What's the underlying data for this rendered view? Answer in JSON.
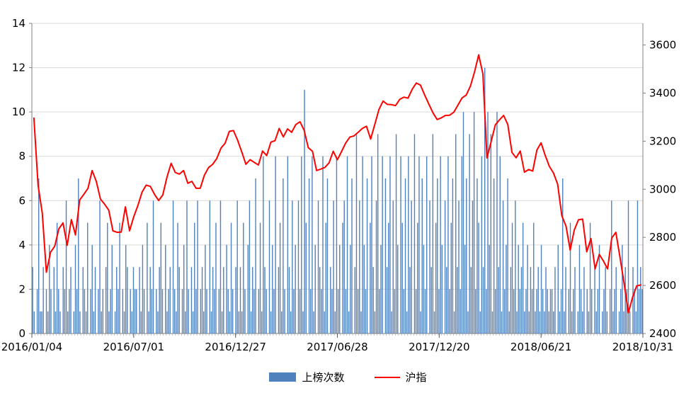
{
  "chart_data": {
    "type": "combo",
    "title": "",
    "x_tick_labels": [
      "2016/01/04",
      "2016/07/01",
      "2016/12/27",
      "2017/06/28",
      "2017/12/20",
      "2018/06/21",
      "2018/10/31"
    ],
    "left_axis": {
      "min": 0,
      "max": 14,
      "step": 2,
      "ticks": [
        0,
        2,
        4,
        6,
        8,
        10,
        12,
        14
      ]
    },
    "right_axis": {
      "min": 2400,
      "plot_max": 3690,
      "labels": [
        2400,
        2600,
        2800,
        3000,
        3200,
        3400,
        3600
      ]
    },
    "legend_position": "bottom",
    "grid": "horizontal",
    "series": [
      {
        "name": "上榜次数",
        "type": "bar",
        "axis": "left",
        "color": "#4f81bd",
        "values": [
          3,
          1,
          0,
          2,
          7,
          1,
          1,
          3,
          0,
          2,
          1,
          4,
          2,
          0,
          3,
          1,
          5,
          2,
          1,
          0,
          3,
          2,
          6,
          1,
          2,
          3,
          0,
          1,
          4,
          2,
          7,
          1,
          0,
          3,
          2,
          1,
          5,
          0,
          2,
          4,
          1,
          3,
          0,
          2,
          6,
          1,
          2,
          0,
          3,
          5,
          1,
          2,
          4,
          0,
          1,
          3,
          2,
          5,
          0,
          2,
          1,
          4,
          3,
          0,
          2,
          1,
          3,
          2,
          2,
          0,
          3,
          1,
          4,
          2,
          0,
          5,
          1,
          3,
          2,
          6,
          0,
          2,
          1,
          3,
          5,
          2,
          0,
          4,
          1,
          2,
          3,
          0,
          6,
          2,
          1,
          5,
          3,
          0,
          2,
          4,
          1,
          6,
          2,
          0,
          3,
          1,
          5,
          2,
          6,
          0,
          2,
          3,
          1,
          4,
          2,
          0,
          6,
          1,
          3,
          2,
          5,
          0,
          2,
          6,
          1,
          3,
          0,
          4,
          2,
          1,
          5,
          2,
          0,
          3,
          6,
          1,
          3,
          1,
          5,
          2,
          0,
          4,
          6,
          1,
          3,
          2,
          7,
          0,
          2,
          5,
          1,
          8,
          3,
          2,
          0,
          6,
          1,
          4,
          2,
          8,
          0,
          3,
          5,
          1,
          7,
          2,
          0,
          8,
          3,
          1,
          6,
          2,
          4,
          0,
          6,
          2,
          8,
          1,
          11,
          5,
          0,
          7,
          2,
          8,
          1,
          4,
          0,
          6,
          3,
          2,
          8,
          1,
          5,
          7,
          0,
          3,
          2,
          6,
          1,
          8,
          2,
          4,
          0,
          5,
          6,
          2,
          8,
          1,
          4,
          7,
          0,
          3,
          9,
          2,
          6,
          1,
          8,
          4,
          2,
          7,
          0,
          5,
          8,
          3,
          1,
          6,
          9,
          2,
          4,
          8,
          0,
          7,
          3,
          5,
          8,
          1,
          6,
          2,
          9,
          4,
          0,
          8,
          5,
          2,
          7,
          1,
          8,
          3,
          6,
          0,
          9,
          2,
          5,
          8,
          1,
          7,
          4,
          2,
          8,
          0,
          6,
          3,
          9,
          1,
          5,
          7,
          2,
          8,
          4,
          0,
          6,
          3,
          8,
          2,
          5,
          7,
          1,
          9,
          3,
          6,
          2,
          8,
          10,
          4,
          7,
          1,
          9,
          3,
          6,
          10,
          2,
          7,
          5,
          1,
          8,
          3,
          12,
          2,
          10,
          4,
          9,
          1,
          7,
          2,
          10,
          3,
          8,
          1,
          6,
          2,
          4,
          7,
          1,
          3,
          5,
          2,
          6,
          1,
          4,
          2,
          3,
          5,
          1,
          2,
          4,
          1,
          3,
          2,
          5,
          1,
          2,
          3,
          1,
          4,
          2,
          1,
          3,
          2,
          1,
          2,
          2,
          1,
          3,
          0,
          4,
          1,
          2,
          7,
          1,
          3,
          0,
          2,
          5,
          1,
          2,
          3,
          0,
          1,
          4,
          2,
          1,
          3,
          0,
          2,
          1,
          5,
          2,
          0,
          3,
          1,
          2,
          4,
          0,
          1,
          2,
          3,
          1,
          0,
          2,
          6,
          1,
          2,
          3,
          0,
          1,
          2,
          4,
          1,
          3,
          2,
          6,
          1,
          0,
          3,
          2,
          1,
          6,
          2,
          3,
          2
        ]
      },
      {
        "name": "沪指",
        "type": "line",
        "axis": "right",
        "color": "#ff0000",
        "values": [
          3296,
          3016,
          2901,
          2655,
          2738,
          2763,
          2836,
          2860,
          2767,
          2874,
          2810,
          2955,
          2979,
          3004,
          3078,
          3033,
          2959,
          2938,
          2913,
          2827,
          2821,
          2822,
          2927,
          2827,
          2885,
          2932,
          2988,
          3017,
          3012,
          2979,
          2953,
          2976,
          3050,
          3108,
          3070,
          3063,
          3078,
          3025,
          3033,
          3004,
          3004,
          3058,
          3090,
          3104,
          3128,
          3171,
          3192,
          3241,
          3244,
          3204,
          3155,
          3104,
          3123,
          3112,
          3101,
          3159,
          3140,
          3196,
          3202,
          3253,
          3218,
          3251,
          3237,
          3269,
          3281,
          3246,
          3173,
          3158,
          3078,
          3084,
          3091,
          3110,
          3158,
          3123,
          3157,
          3192,
          3217,
          3222,
          3237,
          3253,
          3262,
          3209,
          3269,
          3332,
          3367,
          3353,
          3352,
          3348,
          3374,
          3383,
          3379,
          3416,
          3442,
          3433,
          3392,
          3354,
          3318,
          3290,
          3297,
          3307,
          3308,
          3320,
          3350,
          3380,
          3392,
          3429,
          3488,
          3559,
          3480,
          3130,
          3199,
          3268,
          3289,
          3307,
          3269,
          3153,
          3131,
          3159,
          3071,
          3082,
          3076,
          3163,
          3193,
          3141,
          3095,
          3067,
          3021,
          2890,
          2847,
          2747,
          2831,
          2873,
          2876,
          2740,
          2795,
          2669,
          2729,
          2702,
          2669,
          2797,
          2821,
          2716,
          2606,
          2486,
          2550,
          2598,
          2602
        ]
      }
    ]
  }
}
